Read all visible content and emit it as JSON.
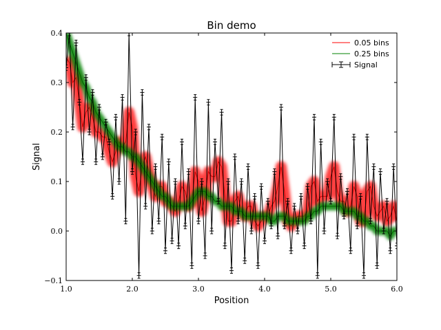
{
  "chart_data": {
    "type": "line",
    "title": "Bin demo",
    "xlabel": "Position",
    "ylabel": "Signal",
    "xlim": [
      1.0,
      6.0
    ],
    "ylim": [
      -0.1,
      0.4
    ],
    "xticks": [
      {
        "value": 1,
        "label": "1.0"
      },
      {
        "value": 2,
        "label": "2.0"
      },
      {
        "value": 3,
        "label": "3.0"
      },
      {
        "value": 4,
        "label": "4.0"
      },
      {
        "value": 5,
        "label": "5.0"
      },
      {
        "value": 6,
        "label": "6.0"
      }
    ],
    "yticks": [
      {
        "value": -0.1,
        "label": "−0.1"
      },
      {
        "value": 0,
        "label": "0.0"
      },
      0.1,
      0.2,
      0.3,
      0.4
    ],
    "legend": "upper right",
    "grid": false,
    "x": [
      1.0,
      1.05,
      1.1,
      1.15,
      1.2,
      1.25,
      1.3,
      1.35,
      1.4,
      1.45,
      1.5,
      1.55,
      1.6,
      1.65,
      1.7,
      1.75,
      1.8,
      1.85,
      1.9,
      1.95,
      2.0,
      2.05,
      2.1,
      2.15,
      2.2,
      2.25,
      2.3,
      2.35,
      2.4,
      2.45,
      2.5,
      2.55,
      2.6,
      2.65,
      2.7,
      2.75,
      2.8,
      2.85,
      2.9,
      2.95,
      3.0,
      3.05,
      3.1,
      3.15,
      3.2,
      3.25,
      3.3,
      3.35,
      3.4,
      3.45,
      3.5,
      3.55,
      3.6,
      3.65,
      3.7,
      3.75,
      3.8,
      3.85,
      3.9,
      3.95,
      4.0,
      4.05,
      4.1,
      4.15,
      4.2,
      4.25,
      4.3,
      4.35,
      4.4,
      4.45,
      4.5,
      4.55,
      4.6,
      4.65,
      4.7,
      4.75,
      4.8,
      4.85,
      4.9,
      4.95,
      5.0,
      5.05,
      5.1,
      5.15,
      5.2,
      5.25,
      5.3,
      5.35,
      5.4,
      5.45,
      5.5,
      5.55,
      5.6,
      5.65,
      5.7,
      5.75,
      5.8,
      5.85,
      5.9,
      5.95,
      6.0
    ],
    "series": [
      {
        "name": "0.05 bins",
        "color": "#ff0000",
        "band": true,
        "values": [
          0.35,
          0.34,
          0.3,
          0.31,
          0.26,
          0.21,
          0.24,
          0.25,
          0.23,
          0.2,
          0.2,
          0.19,
          0.19,
          0.16,
          0.14,
          0.16,
          0.18,
          0.17,
          0.18,
          0.24,
          0.21,
          0.11,
          0.08,
          0.13,
          0.15,
          0.12,
          0.09,
          0.07,
          0.09,
          0.09,
          0.06,
          0.06,
          0.05,
          0.04,
          0.06,
          0.09,
          0.08,
          0.05,
          0.06,
          0.12,
          0.1,
          0.04,
          0.07,
          0.12,
          0.11,
          0.11,
          0.14,
          0.13,
          0.07,
          0.02,
          0.02,
          0.06,
          0.07,
          0.04,
          0.03,
          0.05,
          0.05,
          0.02,
          0.01,
          0.02,
          0.03,
          0.03,
          0.05,
          0.06,
          0.09,
          0.13,
          0.08,
          0.02,
          0.01,
          0.02,
          0.03,
          0.03,
          0.03,
          0.04,
          0.09,
          0.1,
          0.06,
          0.07,
          0.07,
          0.07,
          0.11,
          0.13,
          0.08,
          0.06,
          0.06,
          0.04,
          0.05,
          0.09,
          0.07,
          0.02,
          0.02,
          0.08,
          0.09,
          0.05,
          0.03,
          0.04,
          0.05,
          0.02,
          0.03,
          0.05,
          0.02
        ]
      },
      {
        "name": "0.25 bins",
        "color": "#008000",
        "band": true,
        "values": [
          0.4,
          0.38,
          0.36,
          0.34,
          0.32,
          0.3,
          0.29,
          0.27,
          0.26,
          0.24,
          0.23,
          0.22,
          0.21,
          0.2,
          0.19,
          0.18,
          0.17,
          0.17,
          0.16,
          0.16,
          0.15,
          0.15,
          0.14,
          0.13,
          0.12,
          0.11,
          0.1,
          0.09,
          0.08,
          0.07,
          0.07,
          0.06,
          0.05,
          0.05,
          0.05,
          0.05,
          0.05,
          0.05,
          0.06,
          0.07,
          0.08,
          0.08,
          0.08,
          0.07,
          0.07,
          0.06,
          0.06,
          0.05,
          0.05,
          0.05,
          0.05,
          0.04,
          0.04,
          0.04,
          0.03,
          0.03,
          0.03,
          0.03,
          0.03,
          0.03,
          0.03,
          0.03,
          0.02,
          0.02,
          0.03,
          0.03,
          0.03,
          0.02,
          0.02,
          0.02,
          0.02,
          0.02,
          0.02,
          0.03,
          0.03,
          0.04,
          0.04,
          0.05,
          0.05,
          0.05,
          0.05,
          0.05,
          0.05,
          0.05,
          0.04,
          0.04,
          0.04,
          0.04,
          0.03,
          0.03,
          0.02,
          0.02,
          0.01,
          0.01,
          0.0,
          0.0,
          0.0,
          0.0,
          -0.01,
          0.0,
          0.0
        ]
      },
      {
        "name": "Signal",
        "color": "#000000",
        "markers": true,
        "values": [
          0.33,
          0.4,
          0.21,
          0.38,
          0.26,
          0.14,
          0.31,
          0.2,
          0.28,
          0.14,
          0.25,
          0.15,
          0.22,
          0.18,
          0.07,
          0.23,
          0.1,
          0.27,
          0.02,
          0.4,
          0.12,
          0.2,
          -0.09,
          0.28,
          0.05,
          0.21,
          0.0,
          0.13,
          0.02,
          0.19,
          -0.04,
          0.14,
          -0.02,
          0.1,
          -0.03,
          0.18,
          0.01,
          0.12,
          -0.07,
          0.27,
          0.02,
          0.1,
          -0.05,
          0.26,
          0.0,
          0.18,
          0.06,
          0.24,
          -0.03,
          0.1,
          -0.08,
          0.15,
          0.02,
          0.1,
          -0.06,
          0.13,
          0.0,
          0.07,
          -0.07,
          0.09,
          -0.02,
          0.06,
          0.01,
          0.12,
          -0.01,
          0.25,
          0.01,
          0.06,
          -0.04,
          0.05,
          0.0,
          0.07,
          -0.03,
          0.09,
          0.02,
          0.23,
          -0.09,
          0.18,
          0.0,
          0.1,
          0.06,
          0.23,
          -0.01,
          0.11,
          0.03,
          0.08,
          -0.04,
          0.19,
          0.01,
          0.07,
          -0.09,
          0.19,
          0.02,
          0.13,
          -0.07,
          0.12,
          0.0,
          0.06,
          -0.04,
          0.13,
          -0.03
        ]
      }
    ]
  }
}
